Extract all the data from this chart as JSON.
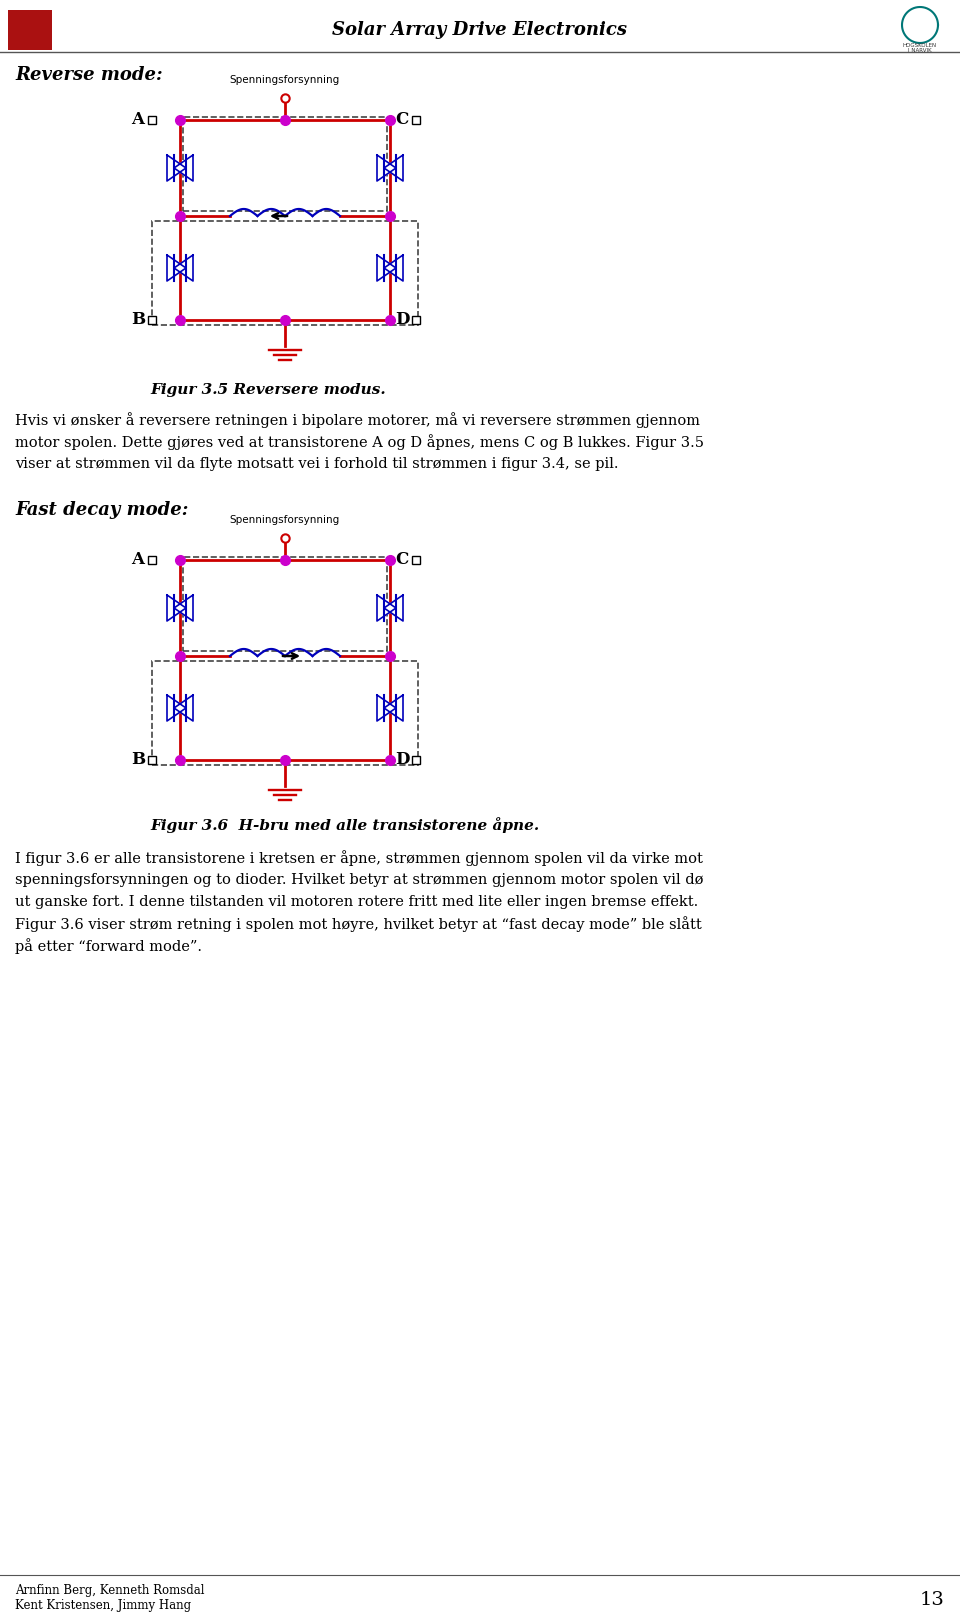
{
  "title": "Solar Array Drive Electronics",
  "page_number": "13",
  "authors_line1": "Arnfinn Berg, Kenneth Romsdal",
  "authors_line2": "Kent Kristensen, Jimmy Hang",
  "section1_heading": "Reverse mode:",
  "fig1_caption": "Figur 3.5 Reversere modus.",
  "fig1_label": "Spenningsforsynning",
  "section2_heading": "Fast decay mode:",
  "fig2_caption": "Figur 3.6  H-bru med alle transistorene åpne.",
  "fig2_label": "Spenningsforsynning",
  "para1_lines": [
    "Hvis vi ønsker å reversere retningen i bipolare motorer, må vi reversere strømmen gjennom",
    "motor spolen. Dette gjøres ved at transistorene A og D åpnes, mens C og B lukkes. Figur 3.5",
    "viser at strømmen vil da flyte motsatt vei i forhold til strømmen i figur 3.4, se pil."
  ],
  "para2_lines": [
    "I figur 3.6 er alle transistorene i kretsen er åpne, strømmen gjennom spolen vil da virke mot",
    "spenningsforsynningen og to dioder. Hvilket betyr at strømmen gjennom motor spolen vil dø",
    "ut ganske fort. I denne tilstanden vil motoren rotere fritt med lite eller ingen bremse effekt.",
    "Figur 3.6 viser strøm retning i spolen mot høyre, hvilket betyr at “fast decay mode” ble slått",
    "på etter “forward mode”."
  ],
  "bg_color": "#ffffff",
  "circuit_red": "#cc0000",
  "circuit_blue": "#0000bb",
  "circuit_magenta": "#cc00cc"
}
